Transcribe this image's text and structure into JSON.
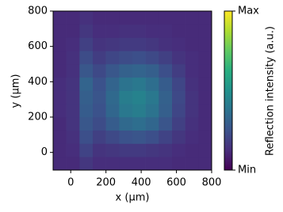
{
  "chart_data": {
    "type": "heatmap",
    "xlabel": "x (μm)",
    "ylabel": "y (μm)",
    "colorbar_label": "Reflection intensity (a.u.)",
    "colormap": "viridis",
    "xlim": [
      -100,
      800
    ],
    "ylim": [
      -100,
      800
    ],
    "xticks": [
      0,
      200,
      400,
      600,
      800
    ],
    "yticks": [
      0,
      200,
      400,
      600,
      800
    ],
    "zlim": [
      0,
      1
    ],
    "zticks": [
      {
        "value": 0,
        "label": "Min"
      },
      {
        "value": 1,
        "label": "Max"
      }
    ],
    "z": [
      [
        0.12,
        0.12,
        0.16,
        0.13,
        0.13,
        0.13,
        0.13,
        0.13,
        0.13,
        0.12,
        0.12,
        0.12
      ],
      [
        0.12,
        0.13,
        0.2,
        0.15,
        0.16,
        0.17,
        0.17,
        0.16,
        0.15,
        0.13,
        0.12,
        0.12
      ],
      [
        0.12,
        0.14,
        0.24,
        0.19,
        0.22,
        0.25,
        0.26,
        0.24,
        0.2,
        0.16,
        0.13,
        0.12
      ],
      [
        0.12,
        0.15,
        0.27,
        0.23,
        0.29,
        0.34,
        0.36,
        0.33,
        0.26,
        0.19,
        0.14,
        0.12
      ],
      [
        0.13,
        0.15,
        0.29,
        0.25,
        0.33,
        0.4,
        0.42,
        0.38,
        0.3,
        0.21,
        0.15,
        0.12
      ],
      [
        0.13,
        0.15,
        0.3,
        0.26,
        0.34,
        0.42,
        0.44,
        0.4,
        0.31,
        0.22,
        0.15,
        0.12
      ],
      [
        0.13,
        0.15,
        0.32,
        0.25,
        0.32,
        0.38,
        0.4,
        0.36,
        0.29,
        0.21,
        0.14,
        0.12
      ],
      [
        0.12,
        0.14,
        0.27,
        0.22,
        0.27,
        0.31,
        0.32,
        0.3,
        0.24,
        0.18,
        0.13,
        0.12
      ],
      [
        0.12,
        0.14,
        0.23,
        0.18,
        0.21,
        0.23,
        0.24,
        0.22,
        0.19,
        0.15,
        0.13,
        0.12
      ],
      [
        0.12,
        0.13,
        0.19,
        0.15,
        0.16,
        0.17,
        0.17,
        0.16,
        0.14,
        0.13,
        0.12,
        0.12
      ],
      [
        0.12,
        0.12,
        0.16,
        0.13,
        0.13,
        0.14,
        0.14,
        0.13,
        0.13,
        0.12,
        0.12,
        0.12
      ],
      [
        0.12,
        0.12,
        0.14,
        0.12,
        0.12,
        0.12,
        0.12,
        0.12,
        0.12,
        0.12,
        0.12,
        0.12
      ]
    ]
  }
}
